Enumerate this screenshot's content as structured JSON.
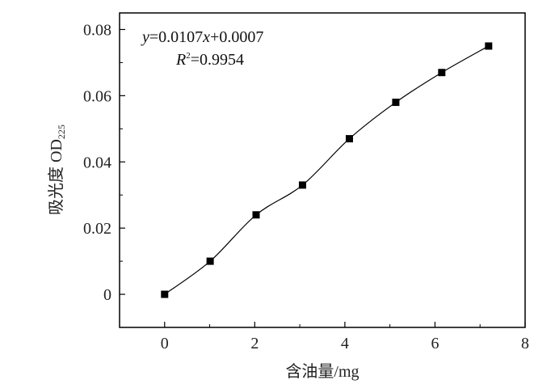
{
  "chart_data": {
    "type": "line",
    "title": "",
    "xlabel": "含油量/mg",
    "ylabel_main": "吸光度 OD",
    "ylabel_sub": "225",
    "xlim": [
      -1,
      8
    ],
    "ylim": [
      -0.01,
      0.085
    ],
    "xticks": [
      "0",
      "2",
      "4",
      "6",
      "8"
    ],
    "xtick_values": [
      0,
      2,
      4,
      6,
      8
    ],
    "yticks": [
      "0",
      "0.02",
      "0.04",
      "0.06",
      "0.08"
    ],
    "ytick_values": [
      0,
      0.02,
      0.04,
      0.06,
      0.08
    ],
    "grid": false,
    "marker": "square",
    "line_color": "#000000",
    "series": [
      {
        "x": [
          0,
          1.01,
          2.03,
          3.06,
          4.1,
          5.13,
          6.15,
          7.19
        ],
        "y": [
          0,
          0.01,
          0.024,
          0.033,
          0.047,
          0.058,
          0.067,
          0.075
        ]
      }
    ],
    "annotations": {
      "equation_y": "y",
      "equation_mid": "=0.0107",
      "equation_x": "x",
      "equation_tail": "+0.0007",
      "r2_R": "R",
      "r2_sup": "2",
      "r2_value": "=0.9954"
    }
  }
}
